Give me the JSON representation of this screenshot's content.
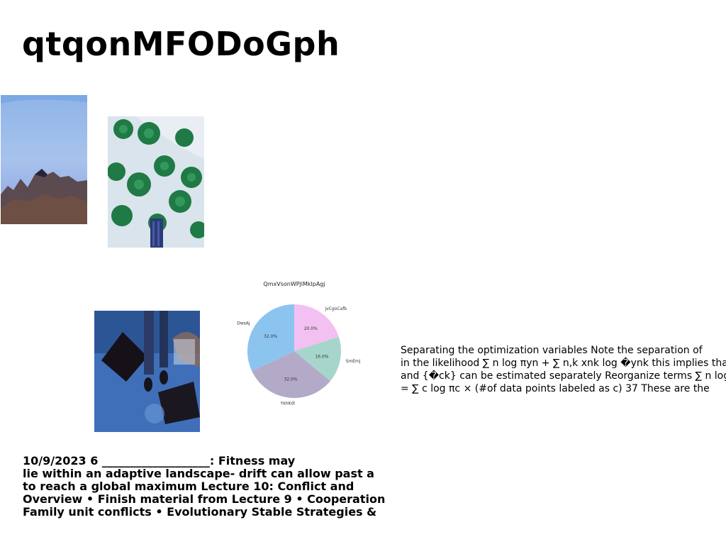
{
  "heading": "qtqonMFODoGph",
  "images": [
    {
      "name": "mountain-sky-photo"
    },
    {
      "name": "palm-trees-aerial-photo"
    },
    {
      "name": "blue-feet-photo"
    }
  ],
  "chart_data": {
    "type": "pie",
    "title": "QmxVsonWPjlMklpAgj",
    "slices": [
      {
        "label": "jvCgoCafb",
        "value": 20.0,
        "pct": "20.0%",
        "color": "#f3c0f2"
      },
      {
        "label": "SmEmj",
        "value": 16.0,
        "pct": "16.0%",
        "color": "#a6d6cb"
      },
      {
        "label": "YkhKdl",
        "value": 32.0,
        "pct": "32.0%",
        "color": "#b3aac8"
      },
      {
        "label": "DwsAj",
        "value": 32.0,
        "pct": "32.0%",
        "color": "#8cc4f0"
      }
    ]
  },
  "right_text": {
    "lines": [
      "Separating the optimization variables Note the separation of",
      "in the likelihood ∑ n log πyn + ∑ n,k xnk log �ynk this implies that",
      "and {�ck} can be estimated separately Reorganize terms ∑ n log",
      "= ∑ c log πc × (#of data points labeled as c) 37 These are the"
    ]
  },
  "left_text": {
    "lines": [
      "10/9/2023 6 ___________________: Fitness may",
      "lie within an adaptive landscape- drift can allow past a",
      "to reach a global maximum Lecture 10: Conflict and",
      "Overview • Finish material from Lecture 9 • Cooperation",
      "Family unit conflicts • Evolutionary Stable Strategies &"
    ]
  }
}
